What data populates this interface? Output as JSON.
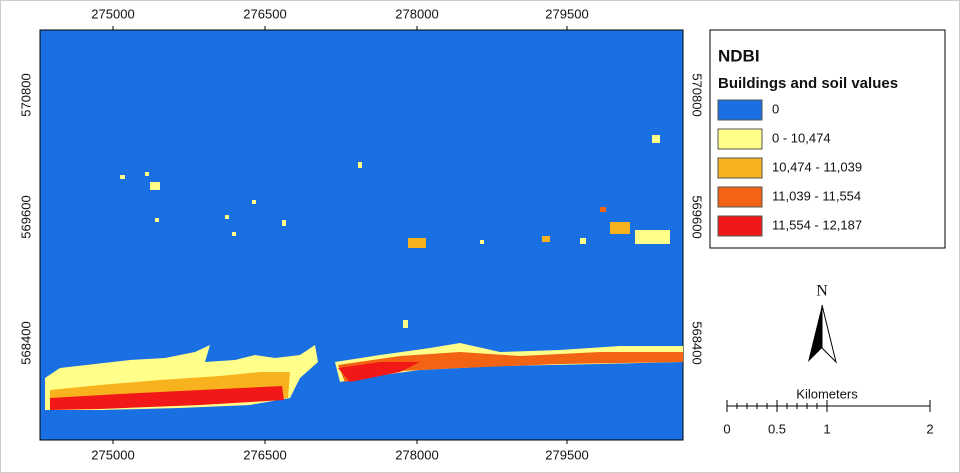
{
  "map": {
    "x_ticks": [
      "275000",
      "276500",
      "278000",
      "279500"
    ],
    "y_ticks": [
      "570800",
      "569600",
      "568400"
    ]
  },
  "legend": {
    "title": "NDBI",
    "subtitle": "Buildings and soil values",
    "items": [
      {
        "label": "0",
        "color": "#1a6fe3"
      },
      {
        "label": "0 - 10,474",
        "color": "#ffff8a"
      },
      {
        "label": "10,474 - 11,039",
        "color": "#f8b21e"
      },
      {
        "label": "11,039 - 11,554",
        "color": "#f26414"
      },
      {
        "label": "11,554 - 12,187",
        "color": "#f21818"
      }
    ]
  },
  "north": "N",
  "scale": {
    "title": "Kilometers",
    "labels": [
      "0",
      "0.5",
      "1",
      "2"
    ]
  }
}
